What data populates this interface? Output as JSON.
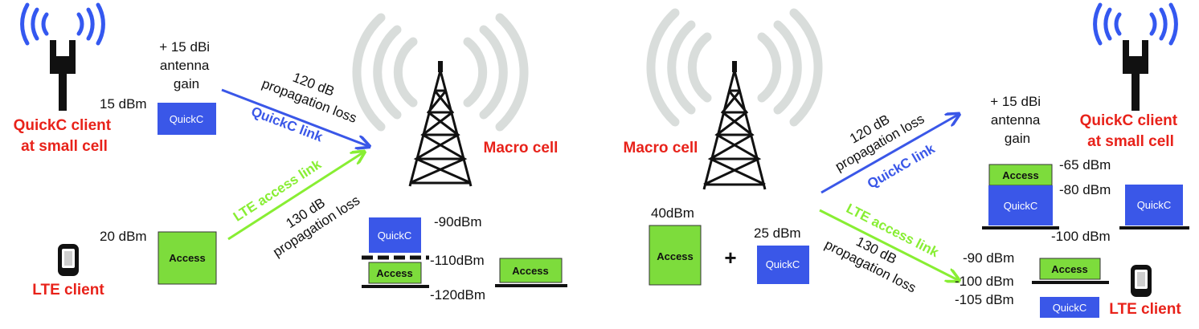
{
  "colors": {
    "red_text": "#e8221a",
    "quickc_blue": "#3a57e8",
    "access_green": "#7ddc3c",
    "lte_arrow_green": "#88ee33",
    "antenna_wave_blue": "#3458f0",
    "macro_wave_gray": "#d9dddb",
    "dark": "#111111"
  },
  "uplink": {
    "quickc_client_label": [
      "QuickC client",
      "at small cell"
    ],
    "lte_client_label": "LTE client",
    "antenna_gain_label": [
      "+ 15 dBi",
      "antenna",
      "gain"
    ],
    "quickc_tx_power": "15 dBm",
    "access_tx_power": "20 dBm",
    "quickc_box": "QuickC",
    "access_box": "Access",
    "quickc_link_label": "QuickC link",
    "quickc_loss_label": [
      "120 dB",
      "propagation loss"
    ],
    "lte_link_label": "LTE access link",
    "lte_loss_label": [
      "130 dB",
      "propagation loss"
    ],
    "macro_cell_label": "Macro cell",
    "rx_quickc_box": "QuickC",
    "rx_access_box": "Access",
    "rx_access_box_2": "Access",
    "levels": [
      "-90dBm",
      "-110dBm",
      "-120dBm"
    ]
  },
  "downlink": {
    "macro_cell_label": "Macro cell",
    "access_tx_power": "40dBm",
    "plus_sign": "+",
    "quickc_tx_power": "25 dBm",
    "access_box": "Access",
    "quickc_box": "QuickC",
    "quickc_loss_label": [
      "120 dB",
      "propagation loss"
    ],
    "quickc_link_label": "QuickC link",
    "lte_link_label": "LTE access link",
    "lte_loss_label": [
      "130 dB",
      "propagation loss"
    ],
    "antenna_gain_label": [
      "+ 15 dBi",
      "antenna",
      "gain"
    ],
    "quickc_client_label": [
      "QuickC client",
      "at small cell"
    ],
    "small_cell_access_box": "Access",
    "small_cell_quickc_box": "QuickC",
    "small_cell_quickc_box_2": "QuickC",
    "small_cell_levels": [
      "-65 dBm",
      "-80 dBm",
      "-100 dBm"
    ],
    "lte_access_box": "Access",
    "lte_quickc_box": "QuickC",
    "lte_levels": [
      "-90 dBm",
      "-100 dBm",
      "-105 dBm"
    ],
    "lte_client_label": "LTE client"
  }
}
